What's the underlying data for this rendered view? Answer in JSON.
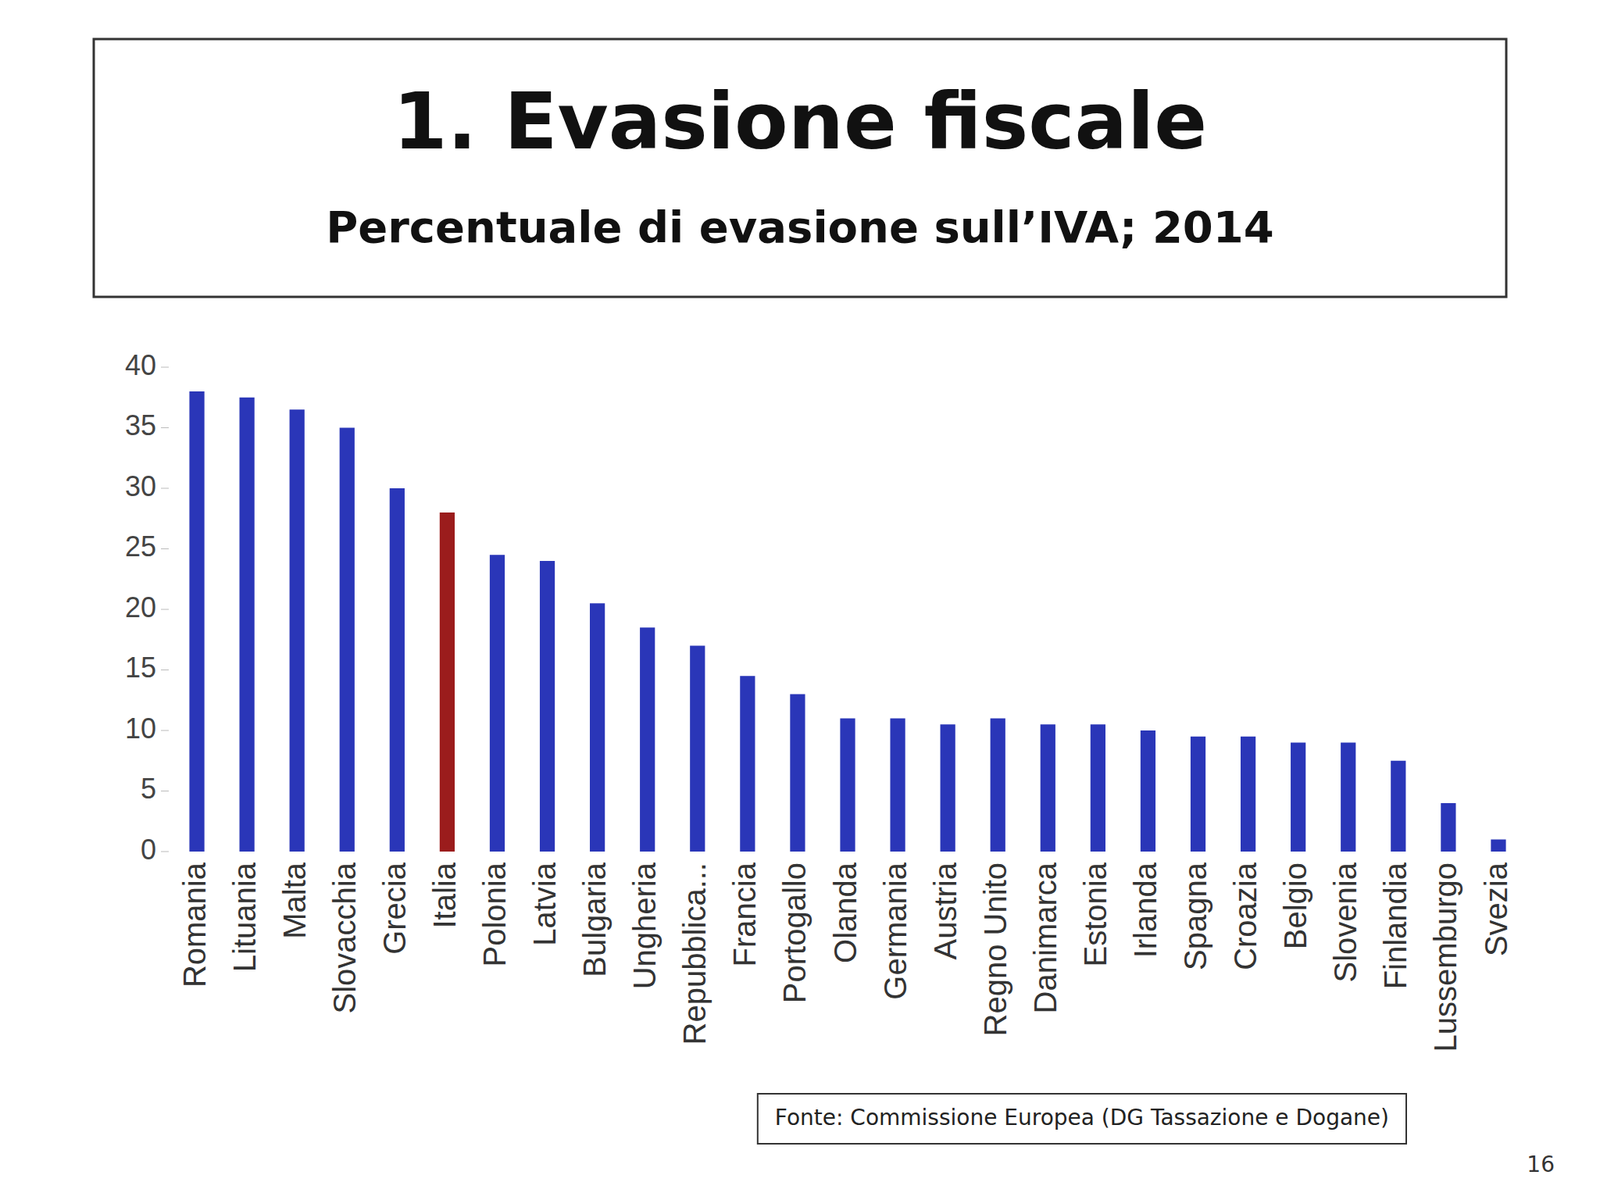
{
  "chart_data": {
    "type": "bar",
    "title": "1. Evasione fiscale",
    "subtitle": "Percentuale di evasione sull’IVA; 2014",
    "categories": [
      "Romania",
      "Lituania",
      "Malta",
      "Slovacchia",
      "Grecia",
      "Italia",
      "Polonia",
      "Latvia",
      "Bulgaria",
      "Ungheria",
      "Repubblica...",
      "Francia",
      "Portogallo",
      "Olanda",
      "Germania",
      "Austria",
      "Regno Unito",
      "Danimarca",
      "Estonia",
      "Irlanda",
      "Spagna",
      "Croazia",
      "Belgio",
      "Slovenia",
      "Finlandia",
      "Lussemburgo",
      "Svezia"
    ],
    "values": [
      38,
      37.5,
      36.5,
      35,
      30,
      28,
      24.5,
      24,
      20.5,
      18.5,
      17,
      14.5,
      13,
      11,
      11,
      10.5,
      11,
      10.5,
      10.5,
      10,
      9.5,
      9.5,
      9,
      9,
      7.5,
      4,
      1
    ],
    "colors": [
      "#2a36b8",
      "#2a36b8",
      "#2a36b8",
      "#2a36b8",
      "#2a36b8",
      "#9b1c1c",
      "#2a36b8",
      "#2a36b8",
      "#2a36b8",
      "#2a36b8",
      "#2a36b8",
      "#2a36b8",
      "#2a36b8",
      "#2a36b8",
      "#2a36b8",
      "#2a36b8",
      "#2a36b8",
      "#2a36b8",
      "#2a36b8",
      "#2a36b8",
      "#2a36b8",
      "#2a36b8",
      "#2a36b8",
      "#2a36b8",
      "#2a36b8",
      "#2a36b8",
      "#2a36b8"
    ],
    "ylim": [
      0,
      40
    ],
    "yticks": [
      0,
      5,
      10,
      15,
      20,
      25,
      30,
      35,
      40
    ],
    "grid": false,
    "source": "Fonte: Commissione Europea (DG Tassazione e Dogane)",
    "page_number": "16"
  }
}
